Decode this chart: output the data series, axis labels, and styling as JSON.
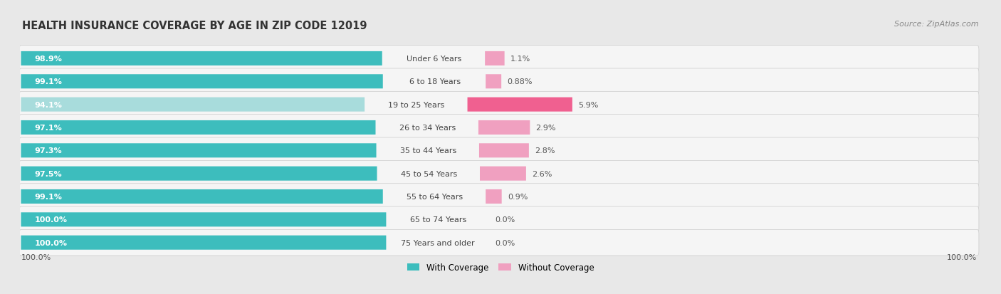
{
  "title": "HEALTH INSURANCE COVERAGE BY AGE IN ZIP CODE 12019",
  "source": "Source: ZipAtlas.com",
  "categories": [
    "Under 6 Years",
    "6 to 18 Years",
    "19 to 25 Years",
    "26 to 34 Years",
    "35 to 44 Years",
    "45 to 54 Years",
    "55 to 64 Years",
    "65 to 74 Years",
    "75 Years and older"
  ],
  "with_coverage": [
    98.9,
    99.1,
    94.1,
    97.1,
    97.3,
    97.5,
    99.1,
    100.0,
    100.0
  ],
  "without_coverage": [
    1.1,
    0.88,
    5.9,
    2.9,
    2.8,
    2.6,
    0.9,
    0.0,
    0.0
  ],
  "with_coverage_labels": [
    "98.9%",
    "99.1%",
    "94.1%",
    "97.1%",
    "97.3%",
    "97.5%",
    "99.1%",
    "100.0%",
    "100.0%"
  ],
  "without_coverage_labels": [
    "1.1%",
    "0.88%",
    "5.9%",
    "2.9%",
    "2.8%",
    "2.6%",
    "0.9%",
    "0.0%",
    "0.0%"
  ],
  "color_with": "#3dbdbd",
  "color_without_dark": "#f06090",
  "color_without_light": "#f0a0c0",
  "color_with_light": "#a8dcdc",
  "bg_color": "#e8e8e8",
  "bar_bg_color": "#f5f5f5",
  "legend_with": "With Coverage",
  "legend_without": "Without Coverage",
  "x_left_label": "100.0%",
  "x_right_label": "100.0%"
}
